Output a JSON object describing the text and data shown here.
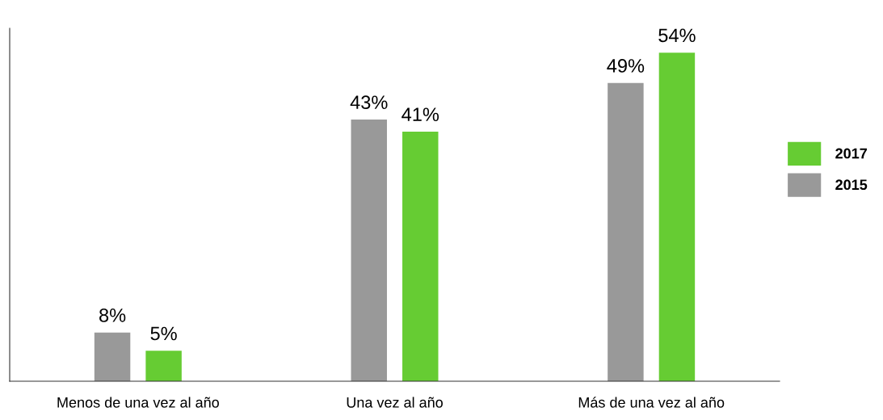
{
  "chart_data": {
    "type": "bar",
    "categories": [
      "Menos de una vez al año",
      "Una vez al año",
      "Más de una vez al año"
    ],
    "series": [
      {
        "name": "2015",
        "color": "#999999",
        "values": [
          8,
          43,
          49
        ],
        "value_labels": [
          "8%",
          "43%",
          "49%"
        ]
      },
      {
        "name": "2017",
        "color": "#66cc33",
        "values": [
          5,
          41,
          54
        ],
        "value_labels": [
          "5%",
          "41%",
          "54%"
        ]
      }
    ],
    "ylim": [
      0,
      58
    ],
    "tick_labels": "x",
    "legend": "right",
    "grid": false
  }
}
